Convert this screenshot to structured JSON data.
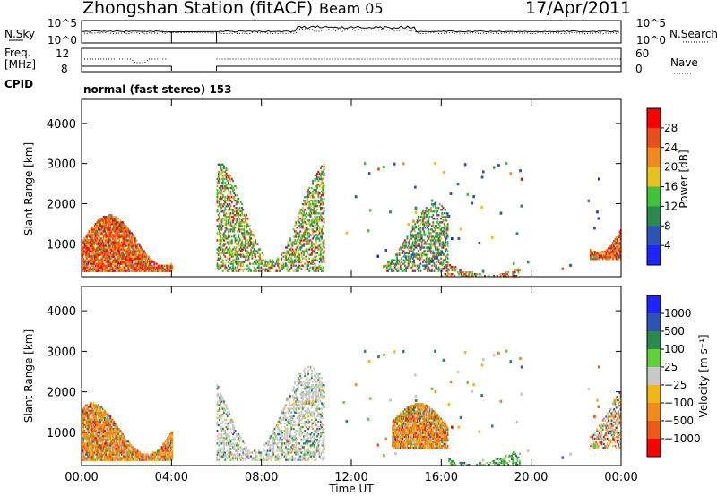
{
  "header": {
    "station": "Zhongshan Station (fitACF)",
    "beam": "Beam 05",
    "date": "17/Apr/2011"
  },
  "nsky_panel": {
    "left_label": "N.Sky",
    "left_ticks": [
      "10^5",
      "10^0"
    ],
    "right_ticks": [
      "10^5",
      "10^0"
    ],
    "right_label": "N.Search"
  },
  "freq_panel": {
    "left_label_1": "Freq.",
    "left_label_2": "[MHz]",
    "left_ticks": [
      "12",
      "8"
    ],
    "right_ticks": [
      "60",
      "0"
    ],
    "right_label": "Nave"
  },
  "cpid": {
    "label": "CPID",
    "value": "normal (fast stereo) 153"
  },
  "colors": {
    "power": [
      "#1d24ff",
      "#2d52b8",
      "#2b8a4e",
      "#40c23a",
      "#e7c21f",
      "#f28a1b",
      "#e8501a",
      "#ff0000"
    ],
    "velocity": [
      "#ff0000",
      "#ee5a16",
      "#f28a1b",
      "#f2b51a",
      "#c8c8c8",
      "#5ed13a",
      "#2b8a4e",
      "#2d52b8",
      "#1d24ff"
    ]
  },
  "chart_data": [
    {
      "type": "heatmap",
      "quantity": "power",
      "ylabel": "Slant Range [km]",
      "xlabel": "",
      "xlim": [
        "00:00",
        "24:00"
      ],
      "ylim": [
        180,
        4600
      ],
      "yticks": [
        1000,
        2000,
        3000,
        4000
      ],
      "xticks": [
        "00:00",
        "04:00",
        "08:00",
        "12:00",
        "16:00",
        "20:00",
        "00:00"
      ],
      "colorbar": {
        "label": "Power [dB]",
        "ticks": [
          "4",
          "8",
          "12",
          "16",
          "20",
          "24",
          "28"
        ]
      },
      "regions": [
        {
          "t": [
            0.0,
            4.0
          ],
          "r": [
            300,
            1700
          ],
          "level": "high"
        },
        {
          "t": [
            6.0,
            10.8
          ],
          "r": [
            300,
            3000
          ],
          "level": "mixed"
        },
        {
          "t": [
            13.5,
            16.3
          ],
          "r": [
            300,
            2000
          ],
          "level": "low"
        },
        {
          "t": [
            16.0,
            19.5
          ],
          "r": [
            180,
            500
          ],
          "level": "mid"
        },
        {
          "t": [
            22.6,
            24.0
          ],
          "r": [
            600,
            2300
          ],
          "level": "high"
        }
      ]
    },
    {
      "type": "heatmap",
      "quantity": "velocity",
      "ylabel": "Slant Range [km]",
      "xlabel": "Time UT",
      "xlim": [
        "00:00",
        "24:00"
      ],
      "ylim": [
        180,
        4600
      ],
      "yticks": [
        1000,
        2000,
        3000,
        4000
      ],
      "xticks": [
        "00:00",
        "04:00",
        "08:00",
        "12:00",
        "16:00",
        "20:00",
        "00:00"
      ],
      "colorbar": {
        "label": "Velocity [m s⁻¹]",
        "ticks": [
          "1000",
          "500",
          "100",
          "25",
          "−25",
          "−100",
          "−500",
          "−1000"
        ]
      },
      "regions": [
        {
          "t": [
            0.0,
            4.0
          ],
          "r": [
            300,
            1700
          ],
          "level": "negative"
        },
        {
          "t": [
            6.0,
            10.8
          ],
          "r": [
            300,
            2600
          ],
          "level": "near-zero"
        },
        {
          "t": [
            13.8,
            16.3
          ],
          "r": [
            600,
            1700
          ],
          "level": "negative"
        },
        {
          "t": [
            16.3,
            19.5
          ],
          "r": [
            180,
            500
          ],
          "level": "positive"
        },
        {
          "t": [
            22.6,
            24.0
          ],
          "r": [
            600,
            2300
          ],
          "level": "mixed"
        }
      ]
    },
    {
      "type": "line",
      "quantity": "nsky-nsearch",
      "gap": [
        "04:00",
        "06:00"
      ]
    },
    {
      "type": "line",
      "quantity": "freq-nave",
      "gap": [
        "04:00",
        "06:00"
      ]
    }
  ]
}
